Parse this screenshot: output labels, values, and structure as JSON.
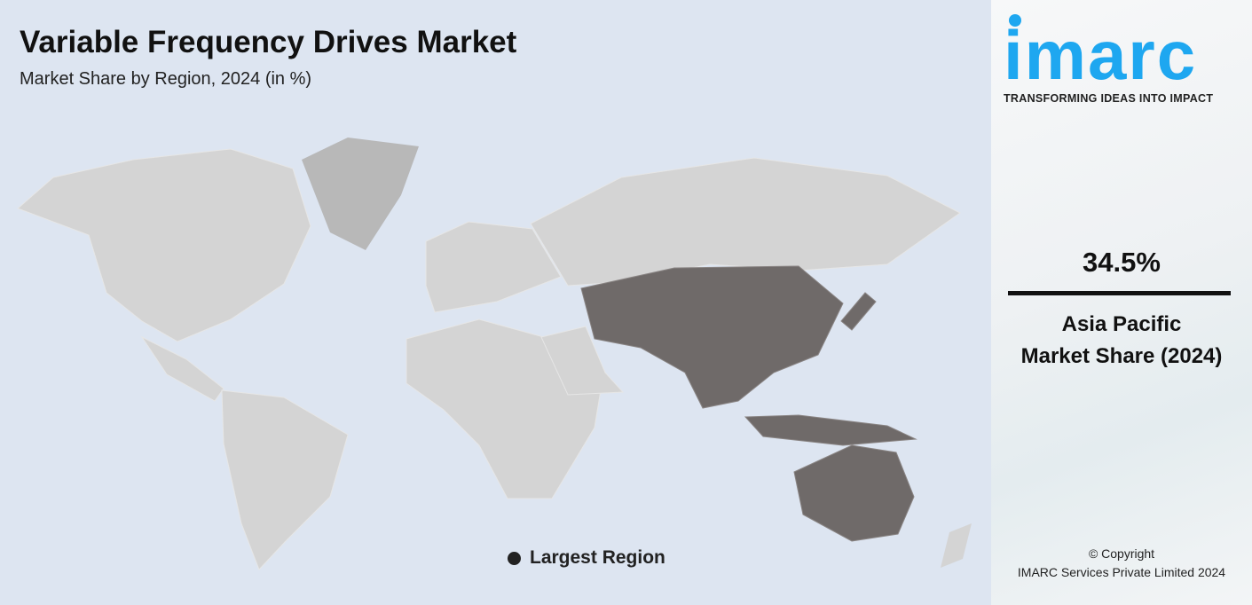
{
  "header": {
    "title": "Variable Frequency Drives Market",
    "subtitle": "Market Share by Region, 2024 (in %)"
  },
  "map": {
    "highlighted_region": "Asia Pacific",
    "colors": {
      "ocean": "#dde5f1",
      "land": "#d4d4d4",
      "greenland": "#b8b8b8",
      "highlight": "#6f6a69"
    }
  },
  "legend": {
    "label": "Largest Region"
  },
  "brand": {
    "name": "imarc",
    "tagline": "TRANSFORMING IDEAS INTO IMPACT",
    "color": "#1ea7f0"
  },
  "stat": {
    "value": "34.5%",
    "region": "Asia Pacific",
    "caption": "Market Share (2024)"
  },
  "footer": {
    "copyright": "© Copyright",
    "company": "IMARC Services Private Limited 2024"
  }
}
